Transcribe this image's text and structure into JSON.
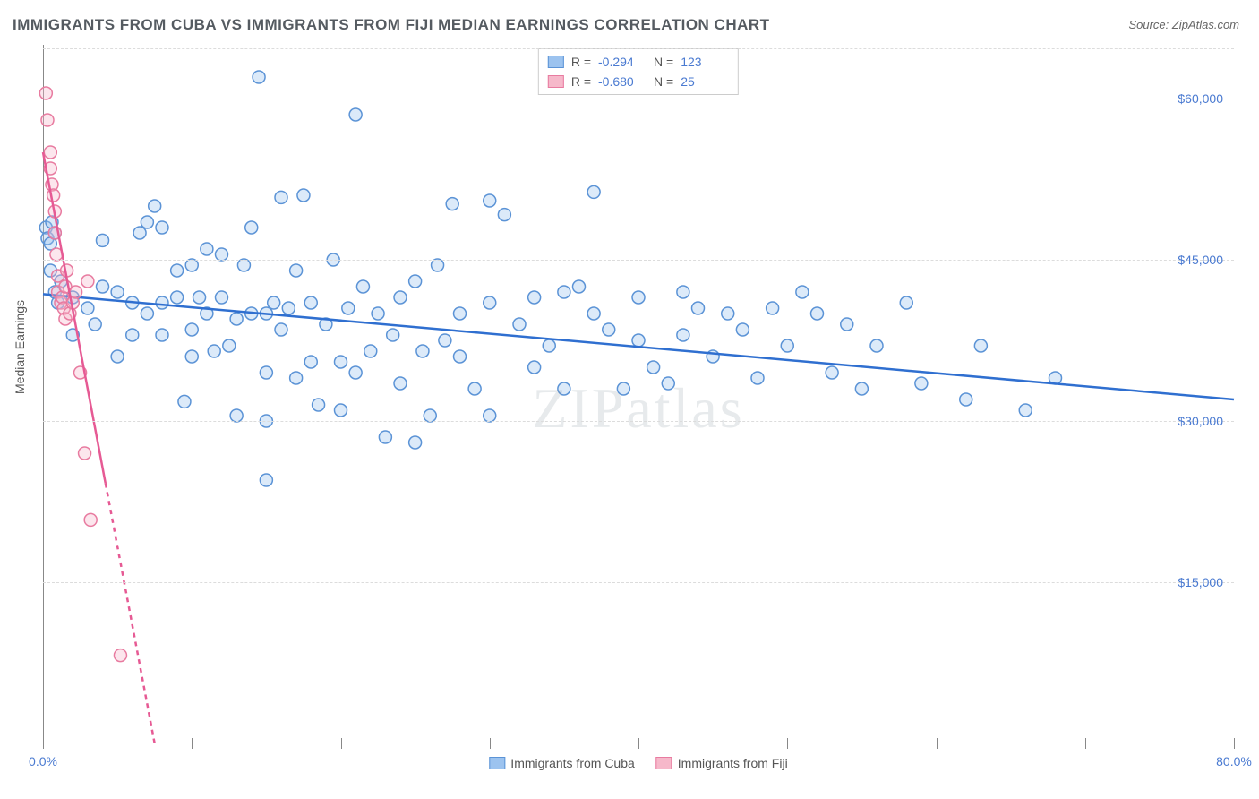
{
  "title": "IMMIGRANTS FROM CUBA VS IMMIGRANTS FROM FIJI MEDIAN EARNINGS CORRELATION CHART",
  "source": "Source: ZipAtlas.com",
  "ylabel": "Median Earnings",
  "watermark": "ZIPatlas",
  "chart": {
    "type": "scatter",
    "xlim": [
      0,
      80
    ],
    "ylim": [
      0,
      65000
    ],
    "xtick_positions": [
      0,
      10,
      20,
      30,
      40,
      50,
      60,
      70,
      80
    ],
    "xtick_labels_shown": {
      "0": "0.0%",
      "80": "80.0%"
    },
    "ytick_positions": [
      15000,
      30000,
      45000,
      60000
    ],
    "ytick_labels": [
      "$15,000",
      "$30,000",
      "$45,000",
      "$60,000"
    ],
    "background_color": "#ffffff",
    "grid_color": "#dcdcdc",
    "axis_color": "#888888",
    "marker_radius": 7,
    "series": [
      {
        "name": "Immigrants from Cuba",
        "color_fill": "#9cc3ef",
        "color_stroke": "#5b93d6",
        "r": "-0.294",
        "n": "123",
        "trend": {
          "x1": 0,
          "y1": 41800,
          "x2": 80,
          "y2": 32000,
          "color": "#2f6fd0",
          "width": 2.5
        },
        "points": [
          [
            0.2,
            48000
          ],
          [
            0.3,
            47000
          ],
          [
            0.5,
            46500
          ],
          [
            0.5,
            44000
          ],
          [
            0.6,
            48500
          ],
          [
            0.8,
            47500
          ],
          [
            0.8,
            42000
          ],
          [
            1.0,
            41000
          ],
          [
            1.2,
            43000
          ],
          [
            2,
            41500
          ],
          [
            2,
            38000
          ],
          [
            3,
            40500
          ],
          [
            3.5,
            39000
          ],
          [
            4,
            42500
          ],
          [
            4,
            46800
          ],
          [
            5,
            42000
          ],
          [
            5,
            36000
          ],
          [
            6,
            41000
          ],
          [
            6,
            38000
          ],
          [
            6.5,
            47500
          ],
          [
            7,
            40000
          ],
          [
            7,
            48500
          ],
          [
            7.5,
            50000
          ],
          [
            8,
            38000
          ],
          [
            8,
            41000
          ],
          [
            8,
            48000
          ],
          [
            9,
            41500
          ],
          [
            9,
            44000
          ],
          [
            9.5,
            31800
          ],
          [
            10,
            36000
          ],
          [
            10,
            38500
          ],
          [
            10,
            44500
          ],
          [
            10.5,
            41500
          ],
          [
            11,
            46000
          ],
          [
            11,
            40000
          ],
          [
            11.5,
            36500
          ],
          [
            12,
            41500
          ],
          [
            12,
            45500
          ],
          [
            12.5,
            37000
          ],
          [
            13,
            39500
          ],
          [
            13,
            30500
          ],
          [
            13.5,
            44500
          ],
          [
            14,
            40000
          ],
          [
            14,
            48000
          ],
          [
            14.5,
            62000
          ],
          [
            15,
            24500
          ],
          [
            15,
            30000
          ],
          [
            15,
            34500
          ],
          [
            15,
            40000
          ],
          [
            15.5,
            41000
          ],
          [
            16,
            38500
          ],
          [
            16,
            50800
          ],
          [
            16.5,
            40500
          ],
          [
            17,
            34000
          ],
          [
            17,
            44000
          ],
          [
            17.5,
            51000
          ],
          [
            18,
            41000
          ],
          [
            18,
            35500
          ],
          [
            18.5,
            31500
          ],
          [
            19,
            39000
          ],
          [
            19.5,
            45000
          ],
          [
            20,
            31000
          ],
          [
            20,
            35500
          ],
          [
            20.5,
            40500
          ],
          [
            21,
            34500
          ],
          [
            21,
            58500
          ],
          [
            21.5,
            42500
          ],
          [
            22,
            36500
          ],
          [
            22.5,
            40000
          ],
          [
            23,
            28500
          ],
          [
            23.5,
            38000
          ],
          [
            24,
            33500
          ],
          [
            24,
            41500
          ],
          [
            25,
            28000
          ],
          [
            25,
            43000
          ],
          [
            25.5,
            36500
          ],
          [
            26,
            30500
          ],
          [
            26.5,
            44500
          ],
          [
            27,
            37500
          ],
          [
            27.5,
            50200
          ],
          [
            28,
            36000
          ],
          [
            28,
            40000
          ],
          [
            29,
            33000
          ],
          [
            30,
            30500
          ],
          [
            30,
            50500
          ],
          [
            30,
            41000
          ],
          [
            31,
            49200
          ],
          [
            32,
            39000
          ],
          [
            33,
            41500
          ],
          [
            33,
            35000
          ],
          [
            34,
            37000
          ],
          [
            35,
            42000
          ],
          [
            35,
            33000
          ],
          [
            36,
            42500
          ],
          [
            37,
            40000
          ],
          [
            37,
            51300
          ],
          [
            38,
            38500
          ],
          [
            39,
            33000
          ],
          [
            40,
            37500
          ],
          [
            40,
            41500
          ],
          [
            41,
            35000
          ],
          [
            42,
            33500
          ],
          [
            43,
            42000
          ],
          [
            43,
            38000
          ],
          [
            44,
            40500
          ],
          [
            45,
            36000
          ],
          [
            46,
            40000
          ],
          [
            47,
            38500
          ],
          [
            48,
            34000
          ],
          [
            49,
            40500
          ],
          [
            50,
            37000
          ],
          [
            51,
            42000
          ],
          [
            52,
            40000
          ],
          [
            53,
            34500
          ],
          [
            54,
            39000
          ],
          [
            55,
            33000
          ],
          [
            56,
            37000
          ],
          [
            58,
            41000
          ],
          [
            59,
            33500
          ],
          [
            62,
            32000
          ],
          [
            63,
            37000
          ],
          [
            66,
            31000
          ],
          [
            68,
            34000
          ]
        ]
      },
      {
        "name": "Immigrants from Fiji",
        "color_fill": "#f6b8ca",
        "color_stroke": "#e87ba0",
        "r": "-0.680",
        "n": "25",
        "trend": {
          "x1": 0,
          "y1": 55000,
          "x2": 7.5,
          "y2": 0,
          "color": "#e65a94",
          "width": 2.5,
          "dash_after_x": 4.2
        },
        "points": [
          [
            0.2,
            60500
          ],
          [
            0.3,
            58000
          ],
          [
            0.5,
            55000
          ],
          [
            0.5,
            53500
          ],
          [
            0.6,
            52000
          ],
          [
            0.7,
            51000
          ],
          [
            0.8,
            49500
          ],
          [
            0.8,
            47500
          ],
          [
            0.9,
            45500
          ],
          [
            1.0,
            43500
          ],
          [
            1.0,
            42000
          ],
          [
            1.2,
            41000
          ],
          [
            1.3,
            41500
          ],
          [
            1.4,
            40500
          ],
          [
            1.5,
            39500
          ],
          [
            1.5,
            42500
          ],
          [
            1.6,
            44000
          ],
          [
            1.8,
            40000
          ],
          [
            2.0,
            41000
          ],
          [
            2.2,
            42000
          ],
          [
            2.5,
            34500
          ],
          [
            2.8,
            27000
          ],
          [
            3.2,
            20800
          ],
          [
            3.0,
            43000
          ],
          [
            5.2,
            8200
          ]
        ]
      }
    ]
  },
  "legend_bottom": [
    "Immigrants from Cuba",
    "Immigrants from Fiji"
  ]
}
